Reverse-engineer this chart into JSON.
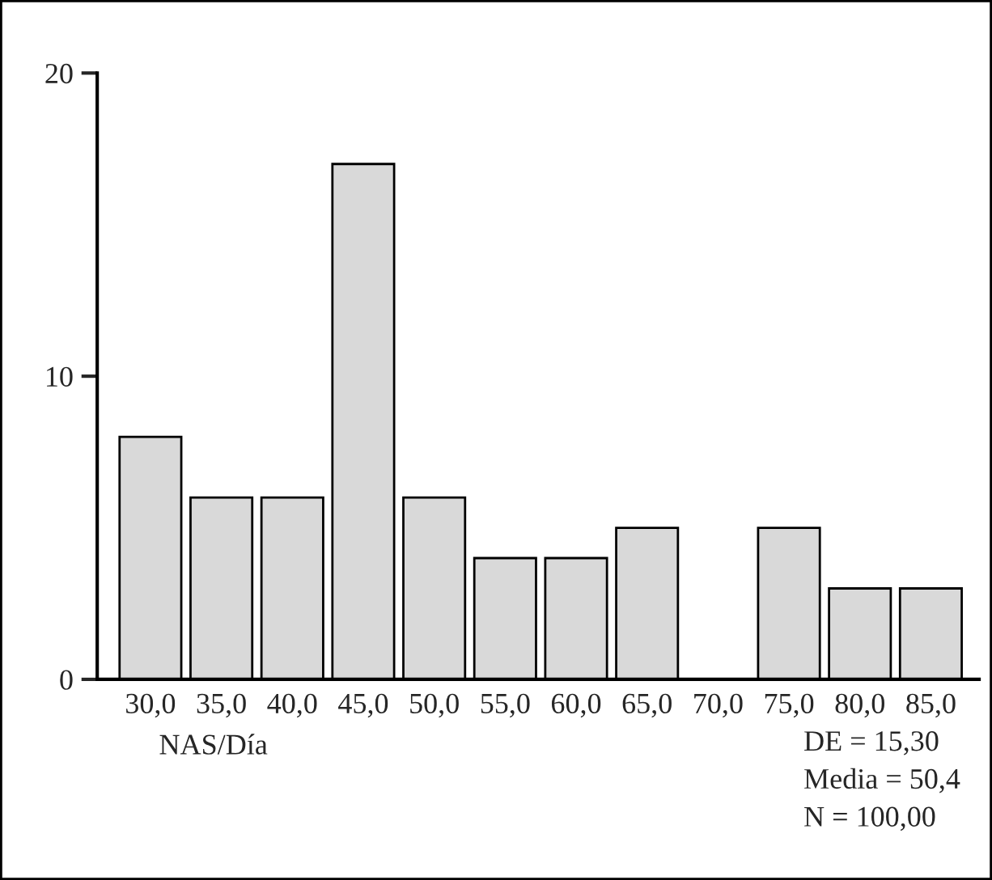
{
  "chart_data": {
    "type": "bar",
    "categories": [
      "30,0",
      "35,0",
      "40,0",
      "45,0",
      "50,0",
      "55,0",
      "60,0",
      "65,0",
      "70,0",
      "75,0",
      "80,0",
      "85,0"
    ],
    "values": [
      8,
      6,
      6,
      17,
      6,
      4,
      4,
      5,
      0,
      5,
      3,
      3
    ],
    "color": "#d9d9d9",
    "xlabel": "NAS/Día",
    "ylim": [
      0,
      20
    ],
    "yticks": [
      0,
      10,
      20
    ],
    "grid": false,
    "legend": false,
    "annotations": [
      "DE = 15,30",
      "Media = 50,4",
      "N = 100,00"
    ]
  }
}
